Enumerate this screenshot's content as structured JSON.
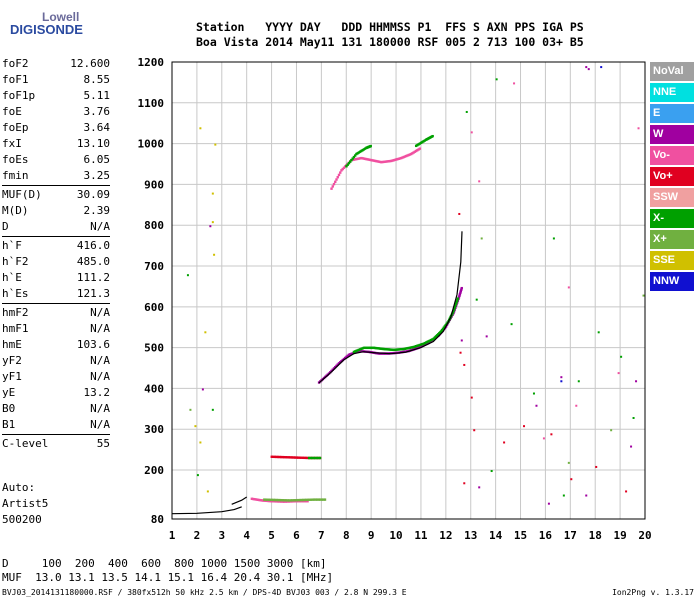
{
  "logo": {
    "line1": "Lowell",
    "line2": "DIGISONDE"
  },
  "header": {
    "line1": "Station   YYYY DAY   DDD HHMMSS P1  FFS S AXN PPS IGA PS",
    "line2": "Boa Vista 2014 May11 131 180000 RSF 005 2 713 100 03+ B5"
  },
  "params": [
    [
      [
        "foF2",
        "12.600"
      ],
      [
        "foF1",
        "8.55"
      ],
      [
        "foF1p",
        "5.11"
      ],
      [
        "foE",
        "3.76"
      ],
      [
        "foEp",
        "3.64"
      ],
      [
        "fxI",
        "13.10"
      ],
      [
        "foEs",
        "6.05"
      ],
      [
        "fmin",
        "3.25"
      ]
    ],
    [
      [
        "MUF(D)",
        "30.09"
      ],
      [
        "M(D)",
        "2.39"
      ],
      [
        "D",
        "N/A"
      ]
    ],
    [
      [
        "h`F",
        "416.0"
      ],
      [
        "h`F2",
        "485.0"
      ],
      [
        "h`E",
        "111.2"
      ],
      [
        "h`Es",
        "121.3"
      ]
    ],
    [
      [
        "hmF2",
        "N/A"
      ],
      [
        "hmF1",
        "N/A"
      ],
      [
        "hmE",
        "103.6"
      ],
      [
        "yF2",
        "N/A"
      ],
      [
        "yF1",
        "N/A"
      ],
      [
        "yE",
        "13.2"
      ],
      [
        "B0",
        "N/A"
      ],
      [
        "B1",
        "N/A"
      ]
    ],
    [
      [
        "C-level",
        "55"
      ]
    ]
  ],
  "artist": {
    "l1": "Auto:",
    "l2": "Artist5",
    "l3": "500200"
  },
  "dmuf": {
    "d_line": "D     100  200  400  600  800 1000 1500 3000 [km]",
    "muf_line": "MUF  13.0 13.1 13.5 14.1 15.1 16.4 20.4 30.1 [MHz]"
  },
  "footer": {
    "left": "BVJ03_2014131180000.RSF / 380fx512h 50 kHz 2.5 km / DPS-4D BVJ03 003 / 2.8 N 299.3 E",
    "right": "Ion2Png v. 1.3.17"
  },
  "legend": [
    {
      "label": "NoVal",
      "color": "#a0a0a0"
    },
    {
      "label": "NNE",
      "color": "#00e0e0"
    },
    {
      "label": "E",
      "color": "#3aa0f0"
    },
    {
      "label": "W",
      "color": "#a000a0"
    },
    {
      "label": "Vo-",
      "color": "#f050a0"
    },
    {
      "label": "Vo+",
      "color": "#e00020"
    },
    {
      "label": "SSW",
      "color": "#f0a0a0"
    },
    {
      "label": "X-",
      "color": "#00a000"
    },
    {
      "label": "X+",
      "color": "#70b040"
    },
    {
      "label": "SSE",
      "color": "#d0c000"
    },
    {
      "label": "NNW",
      "color": "#1010d0"
    }
  ],
  "chart_data": {
    "type": "scatter",
    "xlim": [
      1,
      20
    ],
    "ylim": [
      80,
      1200
    ],
    "xticks": [
      1,
      2,
      3,
      4,
      5,
      6,
      7,
      8,
      9,
      10,
      11,
      12,
      13,
      14,
      15,
      16,
      17,
      18,
      19,
      20
    ],
    "yticks": [
      80,
      200,
      300,
      400,
      500,
      600,
      700,
      800,
      900,
      1000,
      1100,
      1200
    ],
    "grid": true,
    "series": [
      {
        "color": "#a000a0",
        "points": [
          [
            6.9,
            415
          ],
          [
            7.3,
            437
          ],
          [
            7.7,
            462
          ],
          [
            8.1,
            483
          ],
          [
            8.5,
            492
          ],
          [
            8.9,
            490
          ],
          [
            9.3,
            486
          ],
          [
            9.7,
            486
          ],
          [
            10.1,
            488
          ],
          [
            10.5,
            492
          ],
          [
            10.9,
            500
          ],
          [
            11.3,
            512
          ],
          [
            11.7,
            530
          ],
          [
            12.0,
            552
          ],
          [
            12.3,
            585
          ],
          [
            12.5,
            620
          ],
          [
            12.65,
            650
          ]
        ]
      },
      {
        "color": "#00a000",
        "points": [
          [
            8.3,
            490
          ],
          [
            8.7,
            500
          ],
          [
            9.1,
            500
          ],
          [
            9.5,
            497
          ],
          [
            9.9,
            495
          ],
          [
            10.3,
            497
          ],
          [
            10.7,
            502
          ],
          [
            11.1,
            510
          ],
          [
            11.5,
            522
          ],
          [
            11.8,
            540
          ],
          [
            12.1,
            565
          ],
          [
            12.3,
            590
          ],
          [
            12.5,
            625
          ]
        ]
      },
      {
        "color": "#f050a0",
        "points": [
          [
            4.2,
            130
          ],
          [
            4.6,
            126
          ],
          [
            5.0,
            124
          ],
          [
            5.5,
            123
          ],
          [
            6.0,
            124
          ],
          [
            6.5,
            124
          ]
        ]
      },
      {
        "color": "#70b040",
        "points": [
          [
            4.7,
            128
          ],
          [
            5.2,
            127
          ],
          [
            5.7,
            126
          ],
          [
            6.2,
            127
          ],
          [
            6.7,
            128
          ],
          [
            7.2,
            128
          ]
        ]
      },
      {
        "color": "#e00020",
        "points": [
          [
            5.0,
            233
          ],
          [
            5.5,
            232
          ],
          [
            6.0,
            231
          ],
          [
            6.5,
            230
          ],
          [
            7.0,
            230
          ]
        ]
      },
      {
        "color": "#00a000",
        "points": [
          [
            6.5,
            230
          ],
          [
            7.0,
            230
          ]
        ]
      },
      {
        "color": "#f050a0",
        "points": [
          [
            7.4,
            890
          ],
          [
            7.8,
            935
          ],
          [
            8.2,
            960
          ],
          [
            8.6,
            965
          ],
          [
            9.0,
            960
          ],
          [
            9.4,
            955
          ],
          [
            9.8,
            958
          ],
          [
            10.2,
            965
          ],
          [
            10.6,
            975
          ],
          [
            11.0,
            990
          ]
        ]
      },
      {
        "color": "#00a000",
        "points": [
          [
            8.0,
            945
          ],
          [
            8.4,
            975
          ],
          [
            8.8,
            990
          ],
          [
            9.0,
            995
          ]
        ]
      },
      {
        "color": "#00a000",
        "points": [
          [
            10.8,
            995
          ],
          [
            11.2,
            1010
          ],
          [
            11.5,
            1020
          ]
        ]
      }
    ],
    "traces": [
      {
        "color": "#000000",
        "points": [
          [
            6.9,
            413
          ],
          [
            7.4,
            440
          ],
          [
            7.9,
            470
          ],
          [
            8.3,
            485
          ],
          [
            8.7,
            490
          ],
          [
            9.2,
            487
          ],
          [
            9.8,
            485
          ],
          [
            10.4,
            489
          ],
          [
            11.0,
            500
          ],
          [
            11.5,
            515
          ],
          [
            11.9,
            540
          ],
          [
            12.2,
            575
          ],
          [
            12.45,
            630
          ],
          [
            12.6,
            710
          ],
          [
            12.65,
            785
          ]
        ]
      },
      {
        "color": "#000000",
        "points": [
          [
            1.0,
            93
          ],
          [
            2.0,
            94
          ],
          [
            3.0,
            98
          ],
          [
            3.5,
            103
          ],
          [
            3.8,
            110
          ]
        ]
      },
      {
        "color": "#000000",
        "points": [
          [
            3.4,
            116
          ],
          [
            3.8,
            126
          ],
          [
            4.0,
            134
          ]
        ]
      }
    ],
    "scatter_noise": [
      {
        "color": "#a000a0",
        "points": [
          [
            2.2,
            400
          ],
          [
            2.5,
            800
          ],
          [
            12.6,
            520
          ],
          [
            13.6,
            530
          ],
          [
            15.6,
            360
          ],
          [
            16.6,
            430
          ],
          [
            17.6,
            1190
          ],
          [
            17.7,
            1185
          ],
          [
            19.4,
            260
          ],
          [
            19.6,
            420
          ],
          [
            13.3,
            160
          ],
          [
            16.1,
            120
          ],
          [
            17.6,
            140
          ]
        ]
      },
      {
        "color": "#e00020",
        "points": [
          [
            12.5,
            830
          ],
          [
            12.55,
            490
          ],
          [
            12.7,
            460
          ],
          [
            13.0,
            380
          ],
          [
            13.1,
            300
          ],
          [
            14.3,
            270
          ],
          [
            15.1,
            310
          ],
          [
            16.2,
            290
          ],
          [
            17.0,
            180
          ],
          [
            18.0,
            210
          ],
          [
            19.2,
            150
          ],
          [
            12.7,
            170
          ]
        ]
      },
      {
        "color": "#00a000",
        "points": [
          [
            1.6,
            680
          ],
          [
            2.0,
            190
          ],
          [
            2.6,
            350
          ],
          [
            12.8,
            1080
          ],
          [
            13.2,
            620
          ],
          [
            13.8,
            200
          ],
          [
            14.6,
            560
          ],
          [
            15.5,
            390
          ],
          [
            16.3,
            770
          ],
          [
            16.7,
            140
          ],
          [
            17.3,
            420
          ],
          [
            18.1,
            540
          ],
          [
            19.0,
            480
          ],
          [
            19.5,
            330
          ],
          [
            14.0,
            1160
          ]
        ]
      },
      {
        "color": "#d0c000",
        "points": [
          [
            2.1,
            1040
          ],
          [
            2.6,
            880
          ],
          [
            2.6,
            810
          ],
          [
            2.65,
            730
          ],
          [
            2.3,
            540
          ],
          [
            2.1,
            270
          ],
          [
            1.9,
            310
          ],
          [
            2.7,
            1000
          ],
          [
            2.4,
            150
          ]
        ]
      },
      {
        "color": "#70b040",
        "points": [
          [
            1.7,
            350
          ],
          [
            13.4,
            770
          ],
          [
            16.9,
            220
          ],
          [
            18.6,
            300
          ],
          [
            19.9,
            630
          ]
        ]
      },
      {
        "color": "#f050a0",
        "points": [
          [
            13.3,
            910
          ],
          [
            14.7,
            1150
          ],
          [
            15.9,
            280
          ],
          [
            17.2,
            360
          ],
          [
            18.9,
            440
          ],
          [
            19.7,
            1040
          ],
          [
            13.0,
            1030
          ],
          [
            16.9,
            650
          ]
        ]
      },
      {
        "color": "#1010d0",
        "points": [
          [
            18.2,
            1190
          ],
          [
            16.6,
            420
          ]
        ]
      }
    ]
  }
}
